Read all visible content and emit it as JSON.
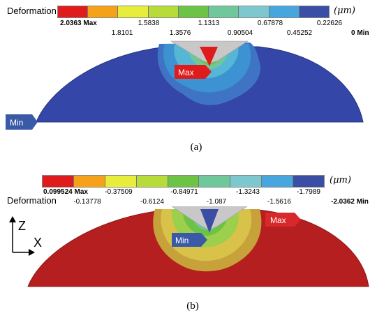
{
  "panel_a": {
    "legend_title": "Deformation",
    "unit": "(μm)",
    "colors": [
      "#e01b1b",
      "#f5a21a",
      "#e8ed3c",
      "#b7dc39",
      "#6cc346",
      "#6fc89a",
      "#7dc8cf",
      "#47a6de",
      "#3a4ea6"
    ],
    "top_labels": [
      "2.0363 Max",
      "1.5838",
      "1.1313",
      "0.67878",
      "0.22626"
    ],
    "bottom_labels": [
      "1.8101",
      "1.3576",
      "0.90504",
      "0.45252",
      "0 Min"
    ],
    "max_tag": "Max",
    "min_tag": "Min",
    "caption": "(a)"
  },
  "panel_b": {
    "legend_title": "Deformation",
    "unit": "(μm)",
    "colors": [
      "#e01b1b",
      "#f5a21a",
      "#e8ed3c",
      "#b7dc39",
      "#6cc346",
      "#6fc89a",
      "#7dc8cf",
      "#47a6de",
      "#3a4ea6"
    ],
    "top_labels": [
      "0.099524 Max",
      "-0.37509",
      "-0.84971",
      "-1.3243",
      "-1.7989"
    ],
    "bottom_labels": [
      "-0.13778",
      "-0.6124",
      "-1.087",
      "-1.5616",
      "-2.0362 Min"
    ],
    "max_tag": "Max",
    "min_tag": "Min",
    "axis_z": "Z",
    "axis_x": "X",
    "caption": "(b)"
  }
}
